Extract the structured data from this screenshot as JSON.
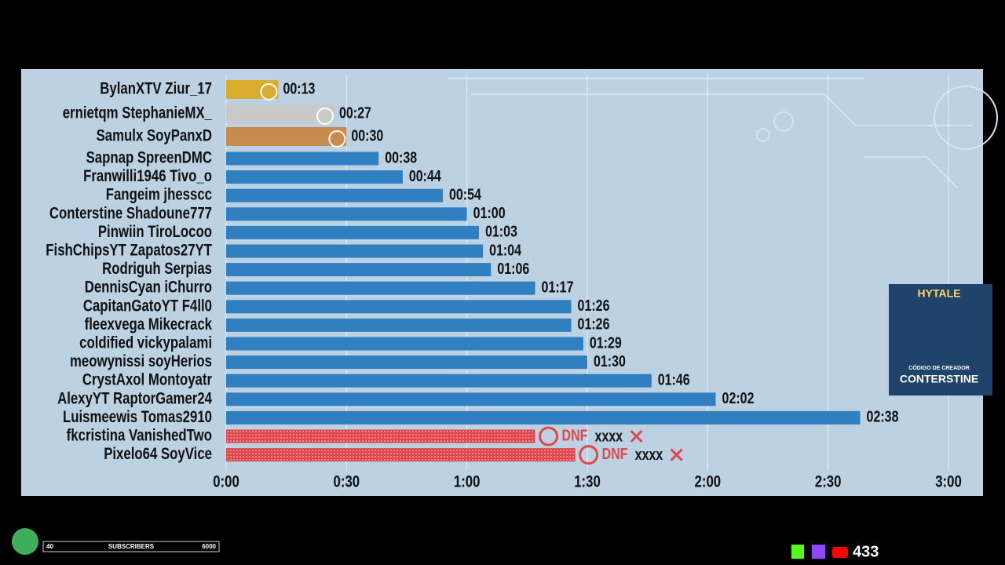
{
  "chart_data": {
    "type": "bar",
    "orientation": "horizontal",
    "categories": [
      "BylanXTV Ziur_17",
      "ernietqm StephanieMX_",
      "Samulx SoyPanxD",
      "Sapnap SpreenDMC",
      "Franwilli1946 Tivo_o",
      "Fangeim jhesscc",
      "Conterstine Shadoune777",
      "Pinwiin TiroLocoo",
      "FishChipsYT Zapatos27YT",
      "Rodriguh Serpias",
      "DennisCyan iChurro",
      "CapitanGatoYT F4ll0",
      "fleexvega Mikecrack",
      "coldified vickypalami",
      "meowynissi soyHerios",
      "CrystAxol Montoyatr",
      "AlexyYT RaptorGamer24",
      "Luismeewis Tomas2910",
      "fkcristina VanishedTwo",
      "Pixelo64 SoyVice"
    ],
    "series": [
      {
        "colors": [
          "#d9ad2e",
          "#c9c9c9",
          "#c98a4e",
          "#2f7fc1",
          "#2f7fc1",
          "#2f7fc1",
          "#2f7fc1",
          "#2f7fc1",
          "#2f7fc1",
          "#2f7fc1",
          "#2f7fc1",
          "#2f7fc1",
          "#2f7fc1",
          "#2f7fc1",
          "#2f7fc1",
          "#2f7fc1",
          "#2f7fc1",
          "#2f7fc1",
          null,
          null
        ],
        "values": [
          13,
          27,
          30,
          38,
          44,
          54,
          60,
          63,
          64,
          66,
          77,
          86,
          86,
          89,
          90,
          106,
          122,
          158,
          null,
          null
        ],
        "value_labels": [
          "00:13",
          "00:27",
          "00:30",
          "00:38",
          "00:44",
          "00:54",
          "01:00",
          "01:03",
          "01:04",
          "01:06",
          "01:17",
          "01:26",
          "01:26",
          "01:29",
          "01:30",
          "01:46",
          "02:02",
          "02:38",
          null,
          null
        ]
      },
      {
        "color": "#e0474c",
        "values": [
          null,
          null,
          null,
          null,
          null,
          null,
          null,
          null,
          null,
          null,
          null,
          null,
          null,
          null,
          null,
          null,
          null,
          null,
          77,
          87
        ]
      }
    ],
    "dnf_marks": [
      "DNF",
      "DNF"
    ],
    "dnf_notes": [
      "xxxx",
      "xxxx"
    ],
    "xlim": [
      0,
      180
    ],
    "xticks": [
      {
        "value": 0,
        "label": "0:00"
      },
      {
        "value": 30,
        "label": "0:30"
      },
      {
        "value": 60,
        "label": "1:00"
      },
      {
        "value": 90,
        "label": "1:30"
      },
      {
        "value": 120,
        "label": "2:00"
      },
      {
        "value": 150,
        "label": "2:30"
      },
      {
        "value": 180,
        "label": "3:00"
      }
    ],
    "grid": true
  },
  "overlay": {
    "subs_current": "40",
    "subs_label": "SUBSCRIBERS",
    "subs_goal": "6000",
    "viewers": "433",
    "promo_game": "HYTALE",
    "promo_caption": "CÓDIGO DE CREADOR",
    "promo_code": "CONTERSTINE"
  }
}
